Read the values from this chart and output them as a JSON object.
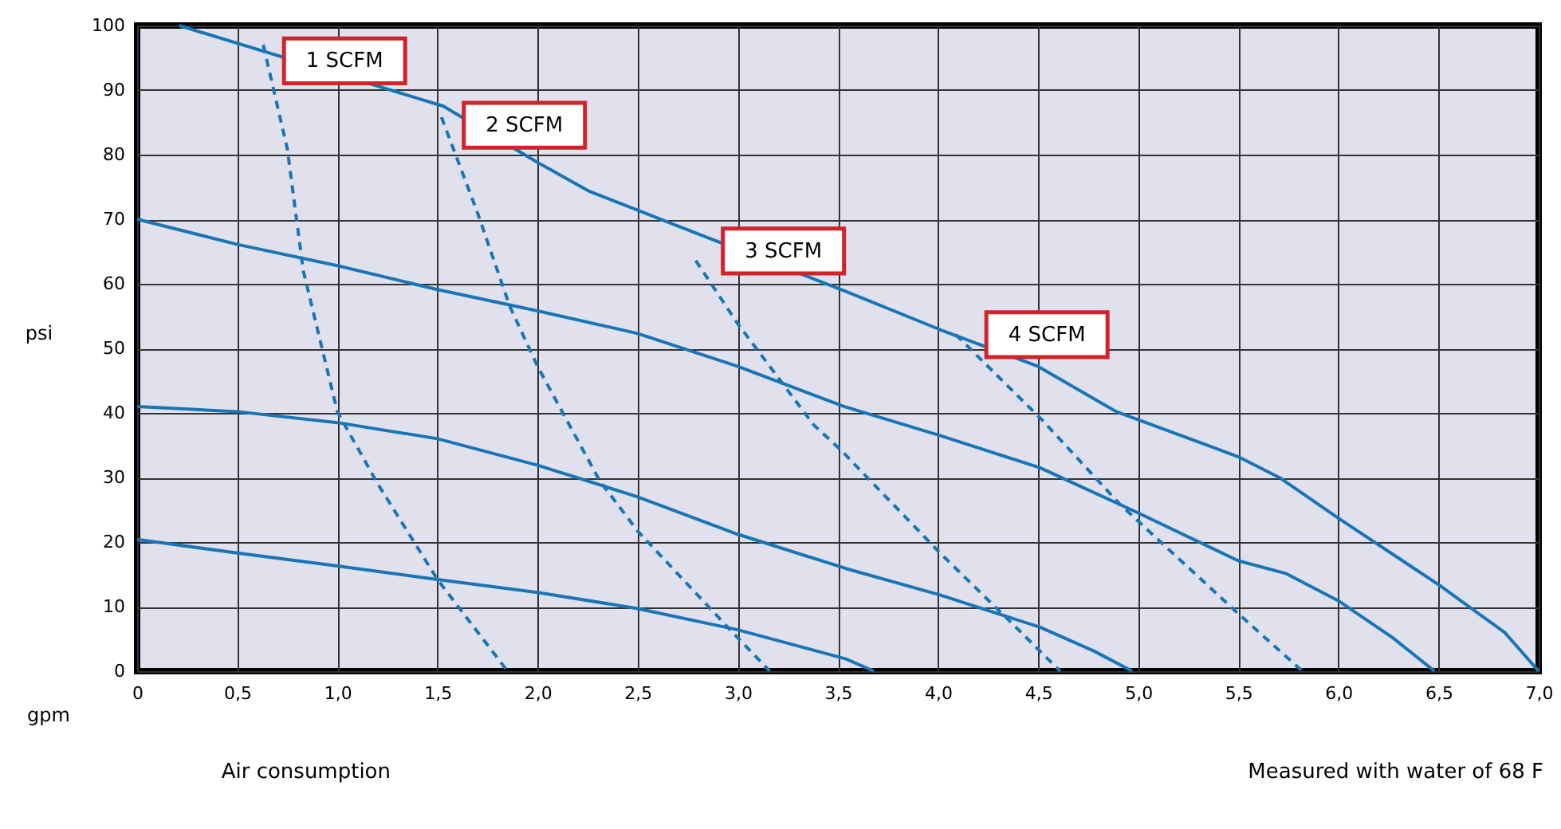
{
  "chart_data": {
    "type": "line",
    "xlabel": "gpm",
    "ylabel": "psi",
    "xlim": [
      0,
      7
    ],
    "ylim": [
      0,
      100
    ],
    "xticks": [
      0,
      {
        "value": 0.5,
        "label": "0,5"
      },
      {
        "value": 1,
        "label": "1,0"
      },
      {
        "value": 1.5,
        "label": "1,5"
      },
      {
        "value": 2,
        "label": "2,0"
      },
      {
        "value": 2.5,
        "label": "2,5"
      },
      {
        "value": 3,
        "label": "3,0"
      },
      {
        "value": 3.5,
        "label": "3,5"
      },
      {
        "value": 4,
        "label": "4,0"
      },
      {
        "value": 4.5,
        "label": "4,5"
      },
      {
        "value": 5,
        "label": "5,0"
      },
      {
        "value": 5.5,
        "label": "5,5"
      },
      {
        "value": 6,
        "label": "6,0"
      },
      {
        "value": 6.5,
        "label": "6,5"
      },
      {
        "value": 7,
        "label": "7,0"
      }
    ],
    "yticks": [
      0,
      10,
      20,
      30,
      40,
      50,
      60,
      70,
      80,
      90,
      100
    ],
    "grid": true,
    "marker": "none",
    "series": [
      {
        "color": "#1a75b5",
        "line_style": "solid",
        "x": [
          0.21,
          1.53,
          2.0,
          2.26,
          2.5,
          2.63,
          3.54,
          4.01,
          4.5,
          4.89,
          5.5,
          5.71,
          6.0,
          6.5,
          6.83,
          7.0
        ],
        "values": [
          100,
          87.5,
          78.8,
          74.3,
          71.4,
          69.8,
          58.8,
          52.9,
          47.2,
          40.2,
          33.2,
          29.9,
          23.7,
          13.4,
          6,
          0
        ]
      },
      {
        "color": "#1a75b5",
        "line_style": "solid",
        "x": [
          0,
          0.5,
          1.0,
          1.5,
          2.0,
          2.5,
          3.0,
          3.53,
          4.01,
          4.51,
          5.0,
          5.5,
          5.74,
          6.0,
          6.27,
          6.48
        ],
        "values": [
          70,
          66.1,
          62.8,
          59.1,
          55.8,
          52.3,
          47.2,
          41,
          36.5,
          31.5,
          24.5,
          17.1,
          15.1,
          10.9,
          5.2,
          0
        ]
      },
      {
        "color": "#1a75b5",
        "line_style": "solid",
        "x": [
          0,
          0.5,
          1.0,
          1.5,
          2.0,
          2.5,
          3.0,
          3.54,
          4.01,
          4.51,
          4.78,
          4.97
        ],
        "values": [
          41,
          40.2,
          38.5,
          36,
          31.9,
          27,
          21.2,
          15.9,
          11.8,
          6.8,
          3.1,
          0
        ]
      },
      {
        "color": "#1a75b5",
        "line_style": "solid",
        "x": [
          0,
          0.5,
          1.0,
          1.5,
          2.0,
          2.5,
          3.0,
          3.54,
          3.68
        ],
        "values": [
          20.4,
          18.3,
          16.3,
          14.2,
          12.2,
          9.7,
          6.4,
          1.9,
          0
        ]
      },
      {
        "color": "#1a75b5",
        "line_style": "dashed",
        "x": [
          0.63,
          0.75,
          0.83,
          1.0,
          1.2,
          1.5,
          1.85
        ],
        "values": [
          97,
          80.9,
          62,
          40.2,
          29.1,
          14.2,
          0
        ]
      },
      {
        "color": "#1a75b5",
        "line_style": "dashed",
        "x": [
          1.52,
          1.7,
          1.86,
          2.0,
          2.31,
          2.5,
          2.95,
          3.16
        ],
        "values": [
          85.8,
          71,
          56.6,
          47.2,
          29.5,
          21.7,
          6.8,
          0
        ]
      },
      {
        "color": "#1a75b5",
        "line_style": "dashed",
        "x": [
          2.79,
          3.0,
          3.38,
          3.51,
          4.01,
          4.36,
          4.61
        ],
        "values": [
          63.6,
          53.8,
          38.1,
          34.4,
          18.3,
          7.7,
          0
        ]
      },
      {
        "color": "#1a75b5",
        "line_style": "dashed",
        "x": [
          4.09,
          4.52,
          4.91,
          5.5,
          5.82
        ],
        "values": [
          52.1,
          38.9,
          25.8,
          8.9,
          0
        ]
      }
    ],
    "annotations": [
      {
        "text": "1 SCFM",
        "x": 0.63,
        "y": 97
      },
      {
        "text": "2 SCFM",
        "x": 1.52,
        "y": 85.8
      },
      {
        "text": "3 SCFM",
        "x": 2.79,
        "y": 63.6
      },
      {
        "text": "4 SCFM",
        "x": 4.09,
        "y": 52.1
      },
      "Air consumption",
      "Measured with water of 68 F"
    ]
  }
}
